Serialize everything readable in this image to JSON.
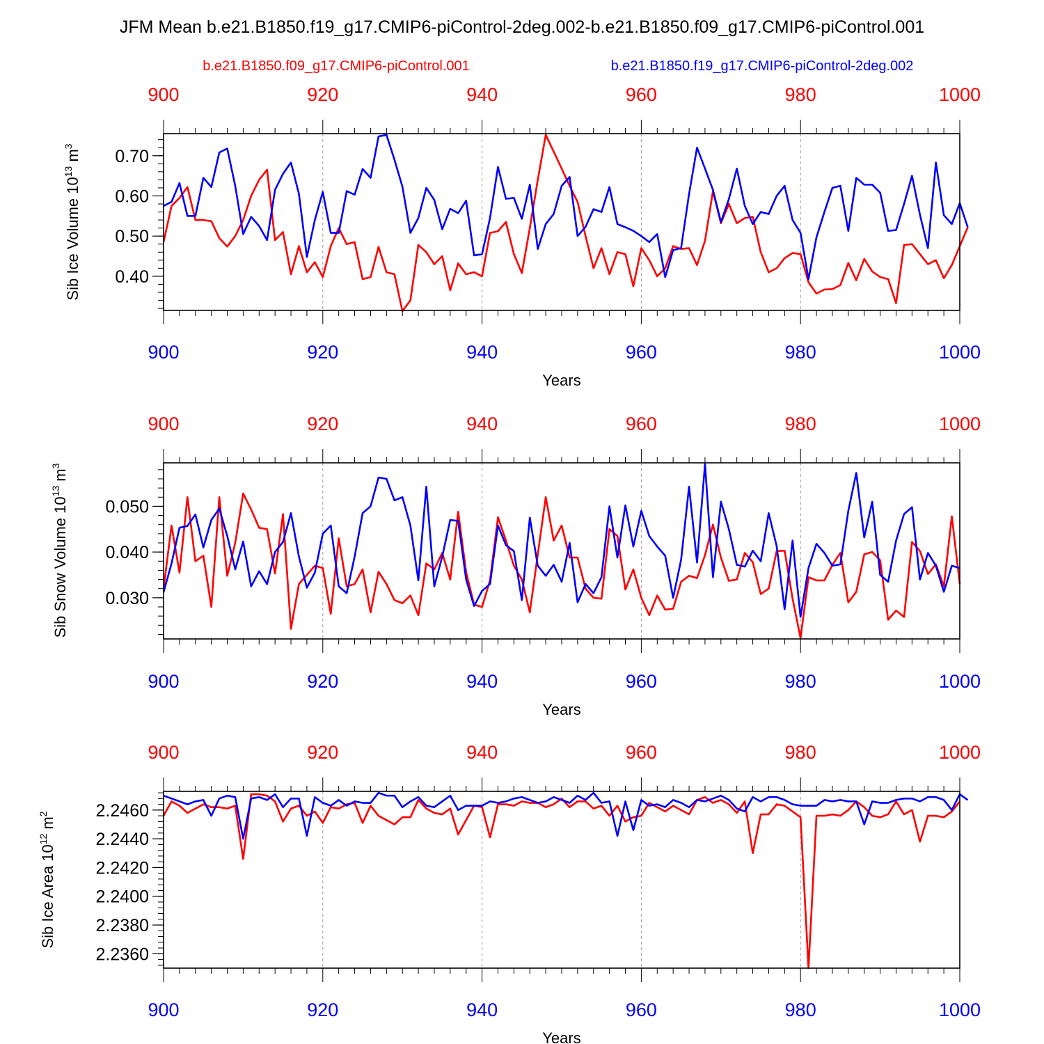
{
  "title": "JFM Mean b.e21.B1850.f19_g17.CMIP6-piControl-2deg.002-b.e21.B1850.f09_g17.CMIP6-piControl.001",
  "legend": {
    "red_label": "b.e21.B1850.f09_g17.CMIP6-piControl.001",
    "blue_label": "b.e21.B1850.f19_g17.CMIP6-piControl-2deg.002"
  },
  "colors": {
    "red": "#ff0000",
    "blue": "#0000ff",
    "frame": "#000000",
    "grid": "#999999"
  },
  "chart_data": [
    {
      "type": "line",
      "ylabel_main": "Sib Ice Volume 10",
      "ylabel_exp": "13",
      "ylabel_unit": " m",
      "ylabel_unit_exp": "3",
      "xlabel": "Years",
      "xlim": [
        900,
        1000
      ],
      "ylim": [
        0.315,
        0.755
      ],
      "xticks": [
        900,
        920,
        940,
        960,
        980,
        1000
      ],
      "xtick_labels": [
        "900",
        "920",
        "940",
        "960",
        "980",
        "1000"
      ],
      "yticks": [
        0.4,
        0.5,
        0.6,
        0.7
      ],
      "ytick_labels": [
        "0.40",
        "0.50",
        "0.60",
        "0.70"
      ],
      "ytick_minor_step": 0.02,
      "x_start": 900,
      "series": [
        {
          "name": "b.e21.B1850.f09_g17.CMIP6-piControl.001",
          "color": "red",
          "values": [
            0.485,
            0.575,
            0.595,
            0.622,
            0.54,
            0.54,
            0.537,
            0.495,
            0.474,
            0.5,
            0.54,
            0.6,
            0.64,
            0.665,
            0.49,
            0.51,
            0.405,
            0.475,
            0.41,
            0.435,
            0.398,
            0.475,
            0.52,
            0.48,
            0.485,
            0.393,
            0.398,
            0.473,
            0.41,
            0.405,
            0.313,
            0.34,
            0.478,
            0.46,
            0.43,
            0.45,
            0.365,
            0.432,
            0.405,
            0.41,
            0.4,
            0.508,
            0.512,
            0.535,
            0.455,
            0.408,
            0.52,
            0.64,
            0.752,
            0.71,
            0.668,
            0.625,
            0.585,
            0.5,
            0.42,
            0.47,
            0.405,
            0.46,
            0.455,
            0.375,
            0.47,
            0.44,
            0.4,
            0.42,
            0.475,
            0.468,
            0.47,
            0.428,
            0.488,
            0.612,
            0.532,
            0.58,
            0.532,
            0.545,
            0.548,
            0.46,
            0.41,
            0.42,
            0.445,
            0.458,
            0.455,
            0.385,
            0.357,
            0.367,
            0.368,
            0.378,
            0.433,
            0.39,
            0.443,
            0.412,
            0.398,
            0.393,
            0.333,
            0.478,
            0.48,
            0.455,
            0.43,
            0.44,
            0.395,
            0.428,
            0.475,
            0.522
          ]
        },
        {
          "name": "b.e21.B1850.f19_g17.CMIP6-piControl-2deg.002",
          "color": "blue",
          "values": [
            0.575,
            0.585,
            0.632,
            0.55,
            0.55,
            0.645,
            0.622,
            0.708,
            0.718,
            0.625,
            0.505,
            0.548,
            0.525,
            0.49,
            0.615,
            0.655,
            0.683,
            0.605,
            0.448,
            0.54,
            0.61,
            0.508,
            0.508,
            0.612,
            0.603,
            0.667,
            0.645,
            0.748,
            0.752,
            0.69,
            0.623,
            0.508,
            0.545,
            0.62,
            0.59,
            0.517,
            0.568,
            0.557,
            0.588,
            0.452,
            0.455,
            0.545,
            0.672,
            0.593,
            0.595,
            0.543,
            0.628,
            0.468,
            0.53,
            0.555,
            0.625,
            0.647,
            0.5,
            0.523,
            0.567,
            0.56,
            0.622,
            0.53,
            0.522,
            0.513,
            0.5,
            0.485,
            0.505,
            0.398,
            0.465,
            0.47,
            0.605,
            0.72,
            0.668,
            0.615,
            0.535,
            0.592,
            0.668,
            0.575,
            0.53,
            0.56,
            0.555,
            0.6,
            0.625,
            0.54,
            0.508,
            0.393,
            0.497,
            0.56,
            0.62,
            0.625,
            0.513,
            0.645,
            0.628,
            0.628,
            0.608,
            0.513,
            0.515,
            0.58,
            0.65,
            0.553,
            0.47,
            0.683,
            0.552,
            0.53,
            0.582,
            0.522
          ]
        }
      ]
    },
    {
      "type": "line",
      "ylabel_main": "Sib Snow Volume 10",
      "ylabel_exp": "13",
      "ylabel_unit": " m",
      "ylabel_unit_exp": "3",
      "xlabel": "Years",
      "xlim": [
        900,
        1000
      ],
      "ylim": [
        0.021,
        0.0595
      ],
      "xticks": [
        900,
        920,
        940,
        960,
        980,
        1000
      ],
      "xtick_labels": [
        "900",
        "920",
        "940",
        "960",
        "980",
        "1000"
      ],
      "yticks": [
        0.03,
        0.04,
        0.05
      ],
      "ytick_labels": [
        "0.030",
        "0.040",
        "0.050"
      ],
      "ytick_minor_step": 0.002,
      "x_start": 900,
      "series": [
        {
          "name": "b.e21.B1850.f09_g17.CMIP6-piControl.001",
          "color": "red",
          "values": [
            0.032,
            0.0458,
            0.0355,
            0.052,
            0.038,
            0.0392,
            0.028,
            0.052,
            0.0348,
            0.042,
            0.0528,
            0.0493,
            0.0453,
            0.045,
            0.0353,
            0.0483,
            0.0232,
            0.033,
            0.035,
            0.037,
            0.0365,
            0.0265,
            0.043,
            0.0325,
            0.033,
            0.0362,
            0.0268,
            0.0357,
            0.033,
            0.0295,
            0.0288,
            0.0305,
            0.0262,
            0.0375,
            0.0362,
            0.0398,
            0.034,
            0.0488,
            0.0356,
            0.0285,
            0.028,
            0.0338,
            0.0476,
            0.0425,
            0.037,
            0.034,
            0.0268,
            0.0395,
            0.052,
            0.0425,
            0.0458,
            0.0388,
            0.0388,
            0.032,
            0.03,
            0.0298,
            0.045,
            0.0435,
            0.0318,
            0.0362,
            0.03,
            0.0262,
            0.0305,
            0.0274,
            0.0276,
            0.0335,
            0.0348,
            0.0343,
            0.0393,
            0.046,
            0.0388,
            0.0337,
            0.034,
            0.0398,
            0.0378,
            0.0308,
            0.032,
            0.0402,
            0.0403,
            0.0298,
            0.0212,
            0.0345,
            0.0338,
            0.0338,
            0.0372,
            0.0398,
            0.029,
            0.0313,
            0.0395,
            0.04,
            0.0382,
            0.0252,
            0.0272,
            0.0258,
            0.0422,
            0.0402,
            0.0352,
            0.0373,
            0.0325,
            0.0478,
            0.033
          ]
        },
        {
          "name": "b.e21.B1850.f19_g17.CMIP6-piControl-2deg.002",
          "color": "blue",
          "values": [
            0.0312,
            0.0375,
            0.0453,
            0.0457,
            0.0482,
            0.041,
            0.047,
            0.0495,
            0.0435,
            0.0362,
            0.0423,
            0.0325,
            0.0358,
            0.033,
            0.04,
            0.0422,
            0.0485,
            0.039,
            0.0322,
            0.0355,
            0.044,
            0.0458,
            0.0325,
            0.031,
            0.039,
            0.0485,
            0.05,
            0.0563,
            0.056,
            0.0513,
            0.052,
            0.0458,
            0.0338,
            0.0543,
            0.0325,
            0.039,
            0.047,
            0.0468,
            0.034,
            0.0282,
            0.0315,
            0.033,
            0.0458,
            0.0415,
            0.0402,
            0.0295,
            0.0475,
            0.037,
            0.0348,
            0.0372,
            0.0335,
            0.042,
            0.029,
            0.033,
            0.031,
            0.0345,
            0.05,
            0.0388,
            0.0502,
            0.0412,
            0.049,
            0.0435,
            0.0412,
            0.0392,
            0.03,
            0.0383,
            0.0543,
            0.0377,
            0.0592,
            0.0345,
            0.051,
            0.045,
            0.0372,
            0.0368,
            0.0403,
            0.038,
            0.0485,
            0.0413,
            0.0275,
            0.0425,
            0.0258,
            0.0365,
            0.0418,
            0.0398,
            0.037,
            0.0373,
            0.049,
            0.0573,
            0.0432,
            0.051,
            0.035,
            0.0335,
            0.0425,
            0.0483,
            0.0498,
            0.034,
            0.0398,
            0.037,
            0.0313,
            0.037,
            0.0365
          ]
        }
      ]
    },
    {
      "type": "line",
      "ylabel_main": "Sib Ice Area 10",
      "ylabel_exp": "12",
      "ylabel_unit": " m",
      "ylabel_unit_exp": "2",
      "xlabel": "Years",
      "xlim": [
        900,
        1000
      ],
      "ylim": [
        2.235,
        2.2473
      ],
      "xticks": [
        900,
        920,
        940,
        960,
        980,
        1000
      ],
      "xtick_labels": [
        "900",
        "920",
        "940",
        "960",
        "980",
        "1000"
      ],
      "yticks": [
        2.236,
        2.238,
        2.24,
        2.242,
        2.244,
        2.246
      ],
      "ytick_labels": [
        "2.2360",
        "2.2380",
        "2.2400",
        "2.2420",
        "2.2440",
        "2.2460"
      ],
      "ytick_minor_step": 0.0004,
      "x_start": 900,
      "series": [
        {
          "name": "b.e21.B1850.f09_g17.CMIP6-piControl.001",
          "color": "red",
          "values": [
            2.2456,
            2.2466,
            2.2463,
            2.2458,
            2.2461,
            2.2464,
            2.2462,
            2.2462,
            2.2461,
            2.2463,
            2.2426,
            2.2471,
            2.2471,
            2.247,
            2.2466,
            2.2452,
            2.2461,
            2.2463,
            2.2456,
            2.2459,
            2.2451,
            2.2462,
            2.2461,
            2.2464,
            2.2465,
            2.2451,
            2.2463,
            2.2456,
            2.2453,
            2.245,
            2.2455,
            2.2455,
            2.2467,
            2.2461,
            2.2458,
            2.2457,
            2.2461,
            2.2443,
            2.2453,
            2.2463,
            2.2462,
            2.2441,
            2.2464,
            2.2464,
            2.2463,
            2.2466,
            2.2465,
            2.2465,
            2.2462,
            2.2464,
            2.2468,
            2.2462,
            2.2466,
            2.2466,
            2.2461,
            2.2463,
            2.2456,
            2.2463,
            2.2452,
            2.2455,
            2.2456,
            2.2465,
            2.2462,
            2.2459,
            2.2463,
            2.246,
            2.2457,
            2.2467,
            2.2469,
            2.2465,
            2.2467,
            2.2464,
            2.2458,
            2.2466,
            2.243,
            2.2457,
            2.2457,
            2.2464,
            2.2463,
            2.2459,
            2.2455,
            2.235,
            2.2456,
            2.2456,
            2.2457,
            2.2456,
            2.246,
            2.2466,
            2.2462,
            2.2456,
            2.2455,
            2.2457,
            2.2466,
            2.2457,
            2.246,
            2.2438,
            2.2456,
            2.2456,
            2.2455,
            2.2459,
            2.2466
          ]
        },
        {
          "name": "b.e21.B1850.f19_g17.CMIP6-piControl-2deg.002",
          "color": "blue",
          "values": [
            2.247,
            2.2468,
            2.2466,
            2.2464,
            2.2466,
            2.2467,
            2.2456,
            2.2468,
            2.247,
            2.2469,
            2.244,
            2.2468,
            2.2469,
            2.2467,
            2.2471,
            2.2462,
            2.2468,
            2.2468,
            2.2442,
            2.2469,
            2.2465,
            2.2463,
            2.2467,
            2.2463,
            2.2466,
            2.2465,
            2.2465,
            2.2472,
            2.247,
            2.247,
            2.2462,
            2.2466,
            2.2469,
            2.2463,
            2.2462,
            2.2466,
            2.247,
            2.246,
            2.2463,
            2.2463,
            2.2463,
            2.2466,
            2.2465,
            2.2466,
            2.2468,
            2.2469,
            2.2467,
            2.2465,
            2.2466,
            2.2469,
            2.2467,
            2.2465,
            2.247,
            2.2467,
            2.2472,
            2.2465,
            2.2466,
            2.2442,
            2.2466,
            2.2446,
            2.2467,
            2.2463,
            2.2464,
            2.2462,
            2.2467,
            2.2465,
            2.2462,
            2.2467,
            2.2466,
            2.2468,
            2.247,
            2.2467,
            2.2461,
            2.2459,
            2.2469,
            2.2466,
            2.2469,
            2.2469,
            2.2467,
            2.2464,
            2.2463,
            2.2463,
            2.2463,
            2.2467,
            2.2466,
            2.2467,
            2.2466,
            2.2466,
            2.245,
            2.2466,
            2.2465,
            2.2465,
            2.2467,
            2.2468,
            2.2468,
            2.2466,
            2.2469,
            2.2469,
            2.2467,
            2.246,
            2.2471,
            2.2467
          ]
        }
      ]
    }
  ]
}
